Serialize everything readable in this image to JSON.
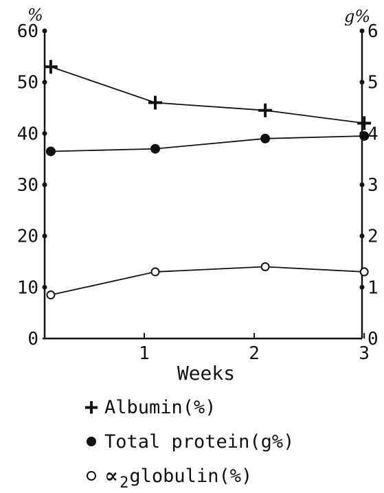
{
  "chart_data": {
    "type": "line",
    "xlabel": "Weeks",
    "x_ticks": [
      "1",
      "2",
      "3"
    ],
    "xlim": [
      0,
      3.1
    ],
    "y_left": {
      "unit": "%",
      "ticks": [
        "0",
        "10",
        "20",
        "30",
        "40",
        "50",
        "60"
      ],
      "ylim": [
        0,
        60
      ]
    },
    "y_right": {
      "unit": "g%",
      "ticks": [
        "0",
        "1",
        "2",
        "3",
        "4",
        "5",
        "6"
      ],
      "ylim": [
        0,
        6
      ]
    },
    "series": [
      {
        "name": "Albumin(%)",
        "marker": "plus",
        "axis": "left",
        "x": [
          0.15,
          1.1,
          2.1,
          3.0
        ],
        "values": [
          53,
          46,
          44.5,
          42
        ]
      },
      {
        "name": "Total protein(g%)",
        "marker": "filled-circle",
        "axis": "right",
        "x": [
          0.15,
          1.1,
          2.1,
          3.0
        ],
        "values": [
          3.65,
          3.7,
          3.9,
          3.95
        ]
      },
      {
        "name": "globulin(%)",
        "marker": "open-circle",
        "axis": "left",
        "x": [
          0.15,
          1.1,
          2.1,
          3.0
        ],
        "values": [
          8.5,
          13,
          14,
          13
        ]
      }
    ]
  },
  "legend": {
    "albumin": "Albumin(%)",
    "total_protein": "Total protein(g%)",
    "alpha_symbol": "∝",
    "alpha_sub": "2",
    "globulin": "globulin(%)"
  }
}
